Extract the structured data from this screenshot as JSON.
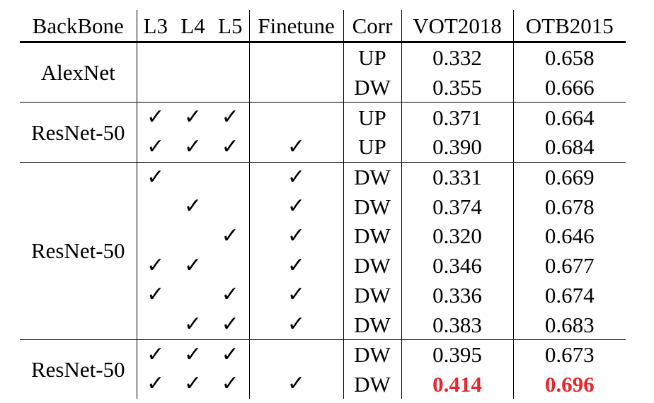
{
  "table": {
    "headers": {
      "backbone": "BackBone",
      "l3": "L3",
      "l4": "L4",
      "l5": "L5",
      "finetune": "Finetune",
      "corr": "Corr",
      "vot": "VOT2018",
      "otb": "OTB2015"
    },
    "check_glyph": "✓",
    "highlight_color": "#e8262d",
    "groups": [
      {
        "backbone": "AlexNet",
        "rows": [
          {
            "l3": false,
            "l4": false,
            "l5": false,
            "finetune": false,
            "corr": "UP",
            "vot": "0.332",
            "otb": "0.658"
          },
          {
            "l3": false,
            "l4": false,
            "l5": false,
            "finetune": false,
            "corr": "DW",
            "vot": "0.355",
            "otb": "0.666"
          }
        ]
      },
      {
        "backbone": "ResNet-50",
        "rows": [
          {
            "l3": true,
            "l4": true,
            "l5": true,
            "finetune": false,
            "corr": "UP",
            "vot": "0.371",
            "otb": "0.664"
          },
          {
            "l3": true,
            "l4": true,
            "l5": true,
            "finetune": true,
            "corr": "UP",
            "vot": "0.390",
            "otb": "0.684"
          }
        ]
      },
      {
        "backbone": "ResNet-50",
        "rows": [
          {
            "l3": true,
            "l4": false,
            "l5": false,
            "finetune": true,
            "corr": "DW",
            "vot": "0.331",
            "otb": "0.669"
          },
          {
            "l3": false,
            "l4": true,
            "l5": false,
            "finetune": true,
            "corr": "DW",
            "vot": "0.374",
            "otb": "0.678"
          },
          {
            "l3": false,
            "l4": false,
            "l5": true,
            "finetune": true,
            "corr": "DW",
            "vot": "0.320",
            "otb": "0.646"
          },
          {
            "l3": true,
            "l4": true,
            "l5": false,
            "finetune": true,
            "corr": "DW",
            "vot": "0.346",
            "otb": "0.677"
          },
          {
            "l3": true,
            "l4": false,
            "l5": true,
            "finetune": true,
            "corr": "DW",
            "vot": "0.336",
            "otb": "0.674"
          },
          {
            "l3": false,
            "l4": true,
            "l5": true,
            "finetune": true,
            "corr": "DW",
            "vot": "0.383",
            "otb": "0.683"
          }
        ]
      },
      {
        "backbone": "ResNet-50",
        "rows": [
          {
            "l3": true,
            "l4": true,
            "l5": true,
            "finetune": false,
            "corr": "DW",
            "vot": "0.395",
            "otb": "0.673"
          },
          {
            "l3": true,
            "l4": true,
            "l5": true,
            "finetune": true,
            "corr": "DW",
            "vot": "0.414",
            "otb": "0.696",
            "best": true
          }
        ]
      }
    ]
  }
}
